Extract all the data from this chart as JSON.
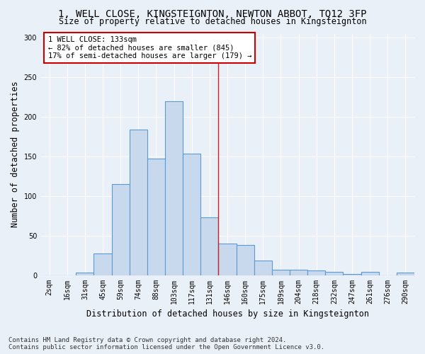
{
  "title": "1, WELL CLOSE, KINGSTEIGNTON, NEWTON ABBOT, TQ12 3FP",
  "subtitle": "Size of property relative to detached houses in Kingsteignton",
  "xlabel": "Distribution of detached houses by size in Kingsteignton",
  "ylabel": "Number of detached properties",
  "bin_labels": [
    "2sqm",
    "16sqm",
    "31sqm",
    "45sqm",
    "59sqm",
    "74sqm",
    "88sqm",
    "103sqm",
    "117sqm",
    "131sqm",
    "146sqm",
    "160sqm",
    "175sqm",
    "189sqm",
    "204sqm",
    "218sqm",
    "232sqm",
    "247sqm",
    "261sqm",
    "276sqm",
    "290sqm"
  ],
  "bar_values": [
    0,
    0,
    3,
    27,
    115,
    184,
    147,
    220,
    153,
    73,
    40,
    38,
    18,
    7,
    7,
    6,
    4,
    1,
    4,
    0,
    3
  ],
  "bar_color": "#c9d9ed",
  "bar_edge_color": "#5b9bd5",
  "vline_x": 9.5,
  "vline_color": "#cc2222",
  "annotation_text": "1 WELL CLOSE: 133sqm\n← 82% of detached houses are smaller (845)\n17% of semi-detached houses are larger (179) →",
  "annotation_box_color": "#ffffff",
  "annotation_box_edge_color": "#cc0000",
  "ylim": [
    0,
    305
  ],
  "yticks": [
    0,
    50,
    100,
    150,
    200,
    250,
    300
  ],
  "footer": "Contains HM Land Registry data © Crown copyright and database right 2024.\nContains public sector information licensed under the Open Government Licence v3.0.",
  "bg_color": "#eaf0f8",
  "plot_bg_color": "#eaf0f8",
  "title_fontsize": 10,
  "subtitle_fontsize": 8.5,
  "axis_label_fontsize": 8.5,
  "tick_fontsize": 7,
  "footer_fontsize": 6.5
}
